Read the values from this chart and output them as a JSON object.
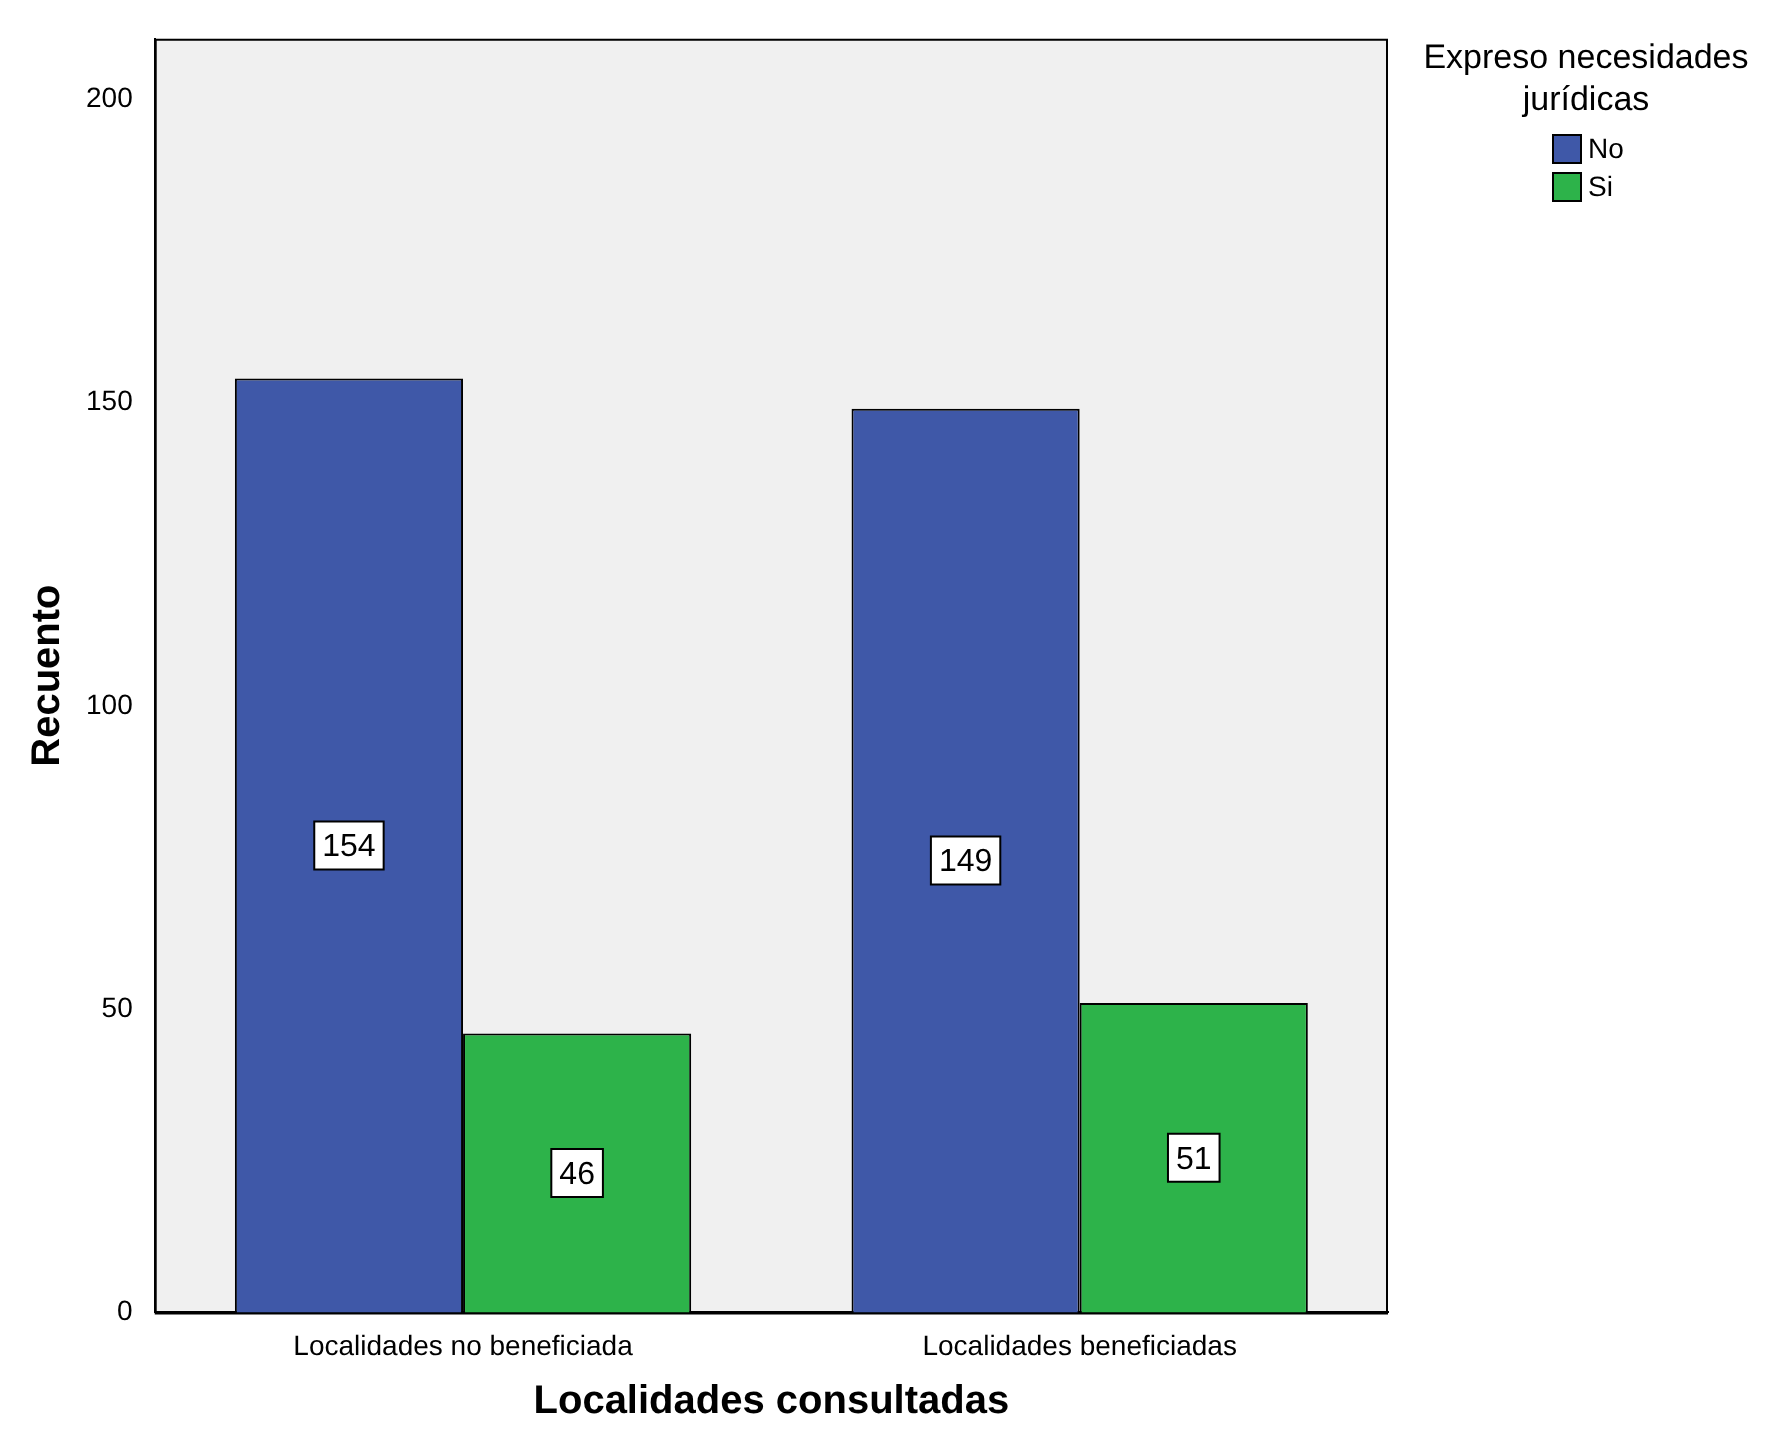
{
  "chart_data": {
    "type": "bar",
    "xlabel": "Localidades consultadas",
    "ylabel": "Recuento",
    "legend_title": "Expreso necesidades jurídicas",
    "categories": [
      "Localidades no beneficiada",
      "Localidades beneficiadas"
    ],
    "series": [
      {
        "name": "No",
        "color": "#3f58a8",
        "values": [
          154,
          149
        ]
      },
      {
        "name": "Si",
        "color": "#2db34a",
        "values": [
          46,
          51
        ]
      }
    ],
    "ylim": [
      0,
      210
    ],
    "yticks": [
      0,
      50,
      100,
      150,
      200
    ],
    "grid": false,
    "legend": "top right",
    "data_labels": true
  }
}
